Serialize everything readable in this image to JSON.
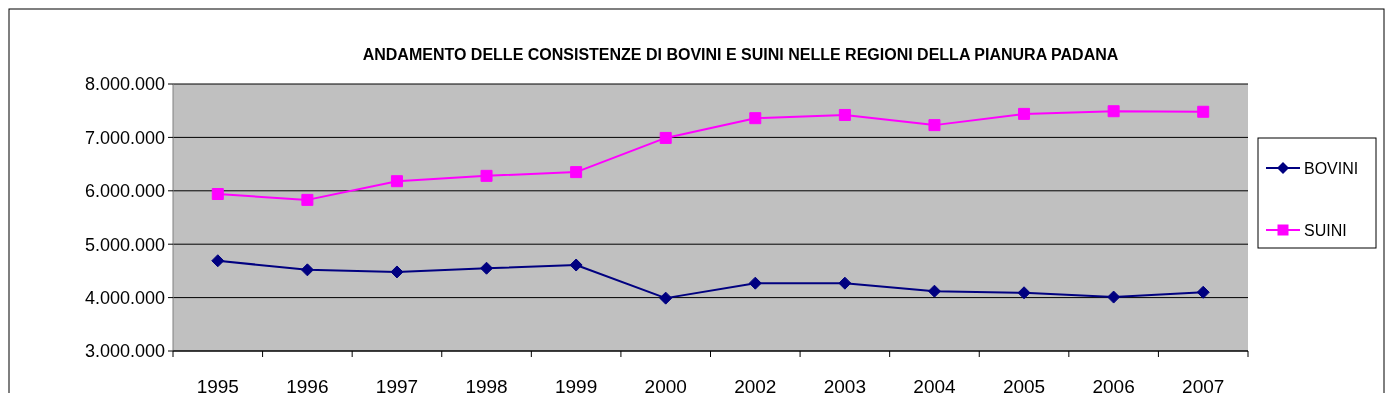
{
  "chart_data": {
    "type": "line",
    "title": "ANDAMENTO DELLE CONSISTENZE DI BOVINI E SUINI NELLE REGIONI DELLA PIANURA PADANA",
    "categories": [
      "1995",
      "1996",
      "1997",
      "1998",
      "1999",
      "2000",
      "2002",
      "2003",
      "2004",
      "2005",
      "2006",
      "2007"
    ],
    "series": [
      {
        "name": "BOVINI",
        "color": "#000080",
        "marker": "diamond",
        "values": [
          4690000,
          4520000,
          4480000,
          4550000,
          4610000,
          3990000,
          4270000,
          4270000,
          4120000,
          4090000,
          4010000,
          4100000
        ]
      },
      {
        "name": "SUINI",
        "color": "#ff00ff",
        "marker": "square",
        "values": [
          5940000,
          5830000,
          6180000,
          6280000,
          6350000,
          6990000,
          7360000,
          7420000,
          7230000,
          7440000,
          7490000,
          7480000
        ]
      }
    ],
    "ylim": [
      3000000,
      8000000
    ],
    "yticks": [
      {
        "value": 3000000,
        "label": "3.000.000"
      },
      {
        "value": 4000000,
        "label": "4.000.000"
      },
      {
        "value": 5000000,
        "label": "5.000.000"
      },
      {
        "value": 6000000,
        "label": "6.000.000"
      },
      {
        "value": 7000000,
        "label": "7.000.000"
      },
      {
        "value": 8000000,
        "label": "8.000.000"
      }
    ],
    "grid": "y",
    "legend": "right",
    "line_style": "solid"
  }
}
